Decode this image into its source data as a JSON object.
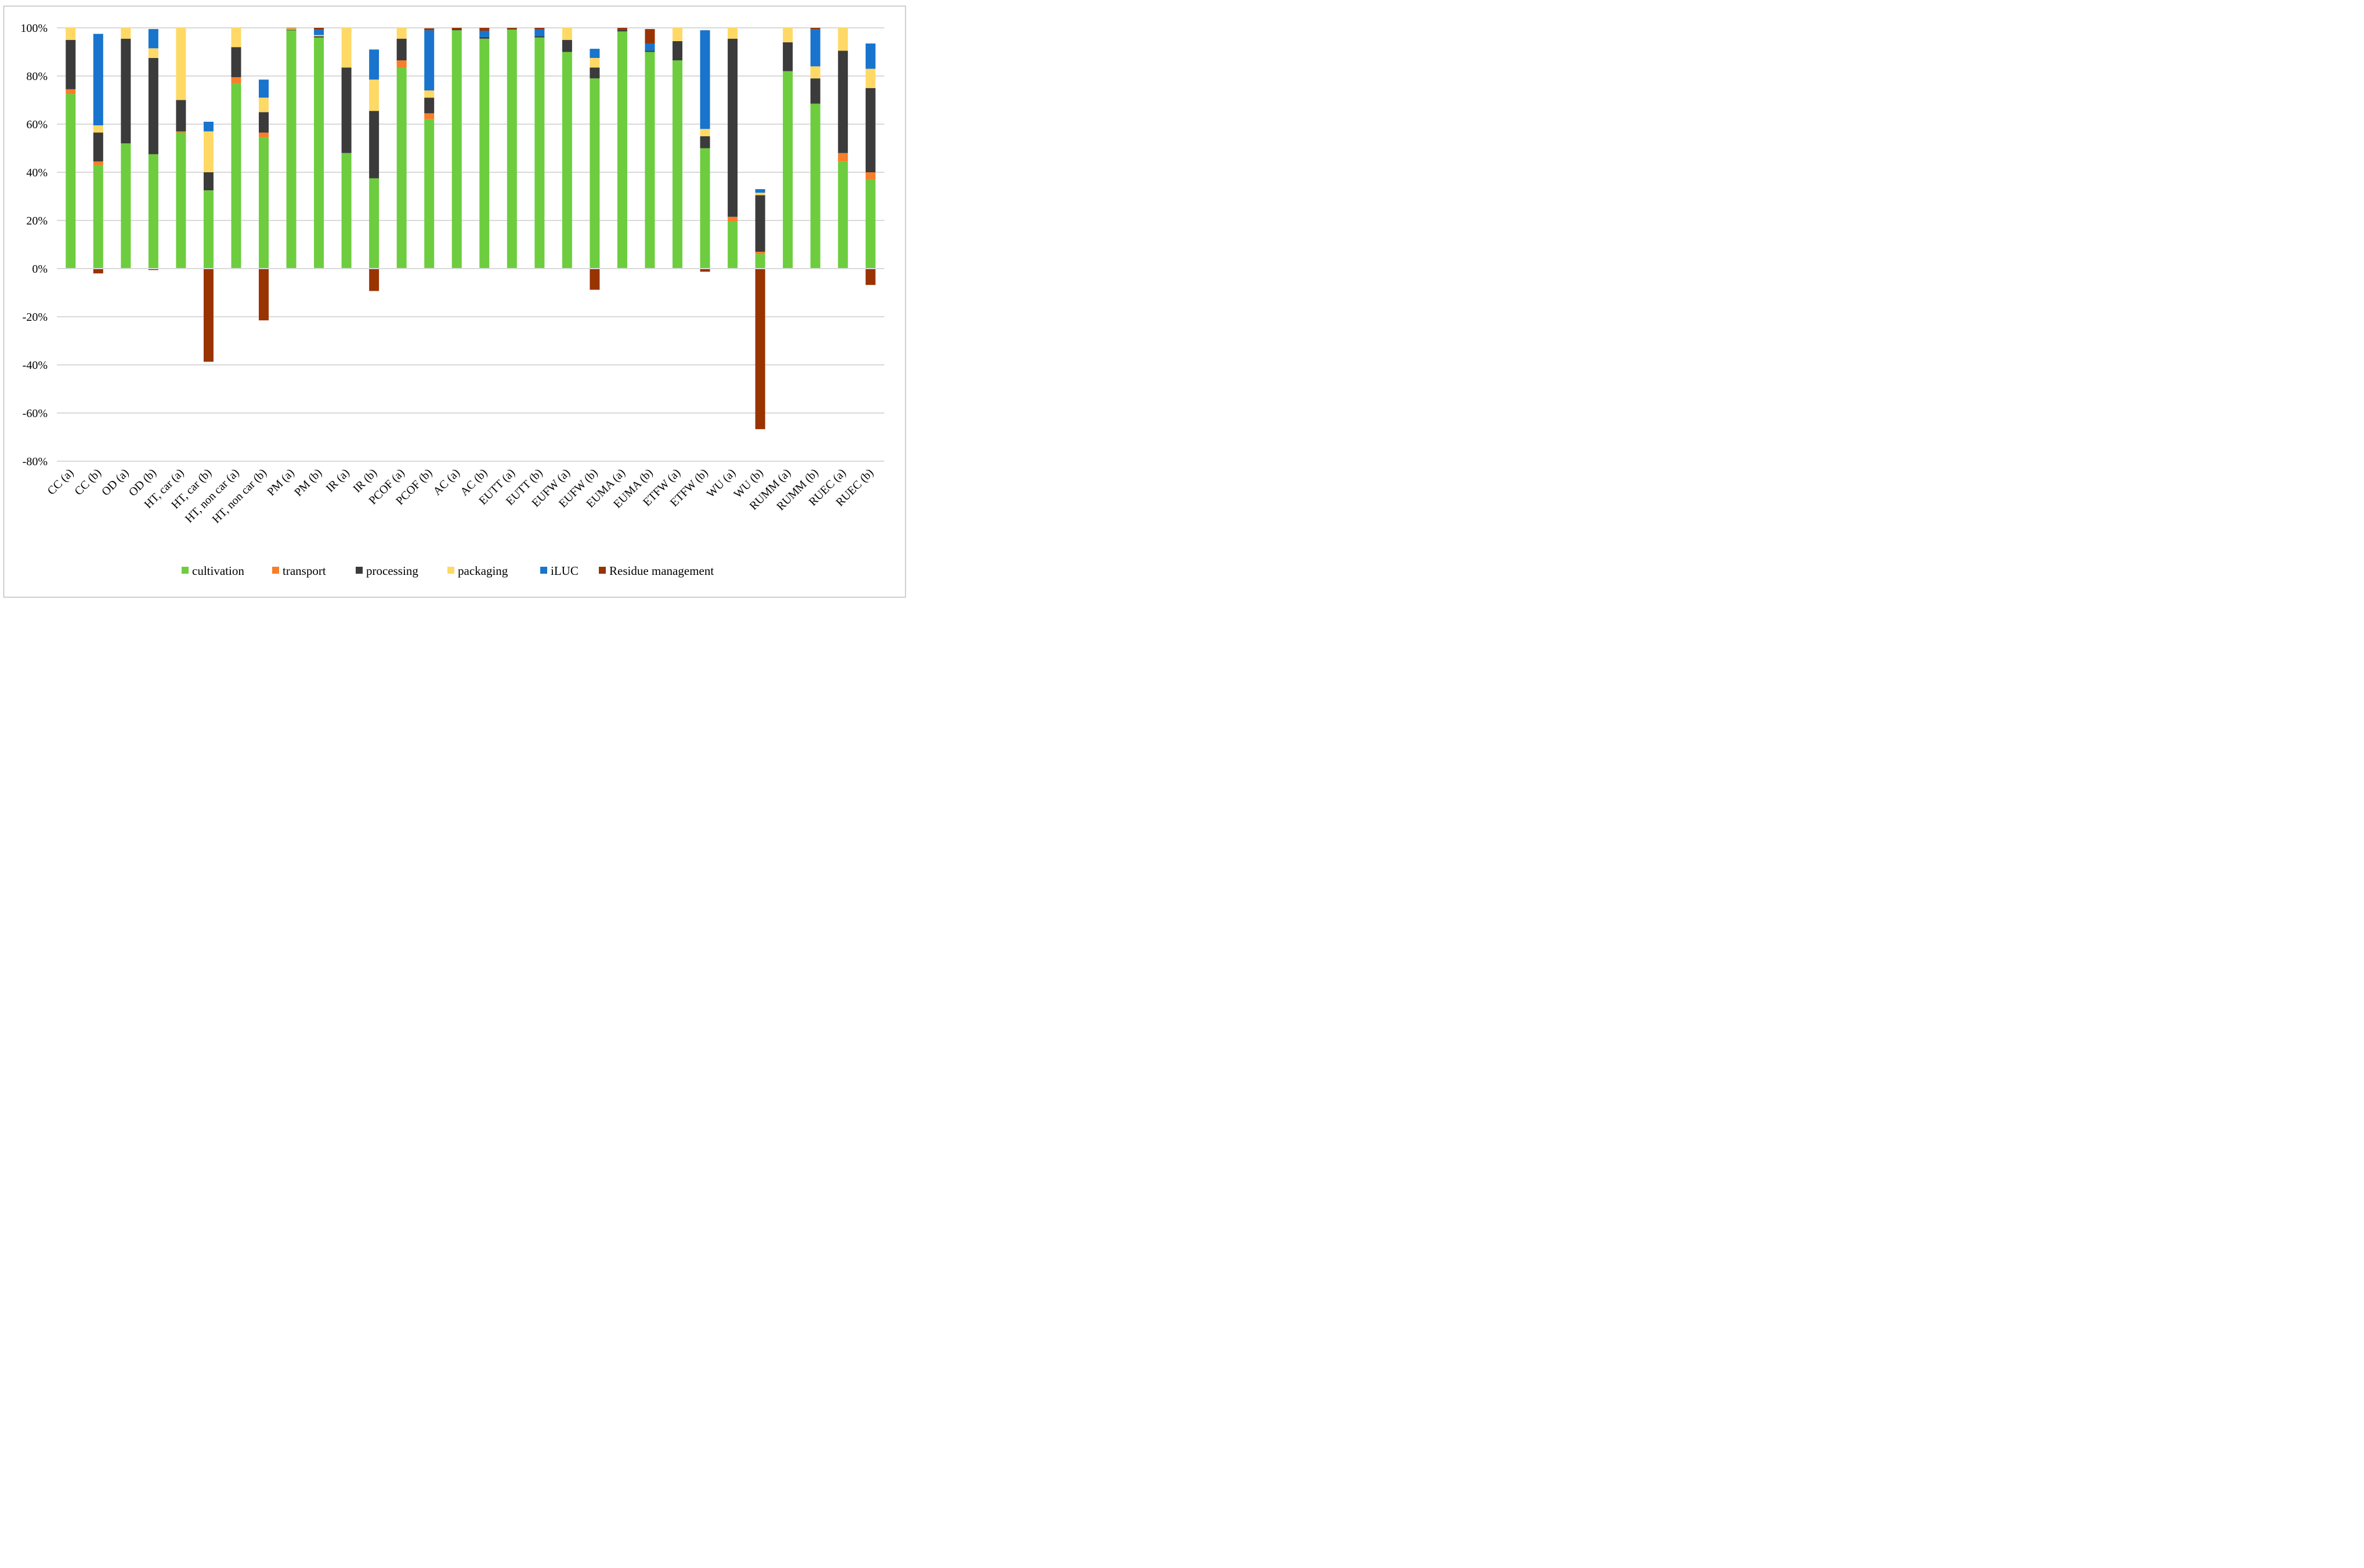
{
  "chart_data": {
    "type": "bar",
    "stacked": true,
    "title": "",
    "xlabel": "",
    "ylabel": "",
    "ylim": [
      -80,
      100
    ],
    "yticks": [
      100,
      80,
      60,
      40,
      20,
      0,
      -20,
      -40,
      -60,
      -80
    ],
    "ytick_labels": [
      "100%",
      "80%",
      "60%",
      "40%",
      "20%",
      "0%",
      "-20%",
      "-40%",
      "-60%",
      "-80%"
    ],
    "grid": true,
    "legend_position": "bottom",
    "categories": [
      "CC (a)",
      "CC (b)",
      "OD (a)",
      "OD (b)",
      "HT, car (a)",
      "HT, car (b)",
      "HT, non car (a)",
      "HT, non car (b)",
      "PM (a)",
      "PM (b)",
      "IR (a)",
      "IR (b)",
      "PCOF (a)",
      "PCOF (b)",
      "AC (a)",
      "AC (b)",
      "EUTT (a)",
      "EUTT (b)",
      "EUFW (a)",
      "EUFW (b)",
      "EUMA (a)",
      "EUMA (b)",
      "ETFW (a)",
      "ETFW (b)",
      "WU (a)",
      "WU (b)",
      "RUMM (a)",
      "RUMM (b)",
      "RUEC (a)",
      "RUEC (b)"
    ],
    "series": [
      {
        "name": "cultivation",
        "color": "#6DCD3E",
        "values": [
          72.5,
          43.0,
          52.0,
          47.5,
          56.5,
          32.5,
          77.0,
          54.5,
          99.0,
          96.0,
          48.0,
          37.5,
          83.5,
          62.0,
          99.0,
          95.5,
          99.3,
          96.0,
          90.0,
          79.0,
          98.5,
          90.0,
          86.5,
          50.0,
          19.5,
          6.0,
          82.0,
          68.5,
          44.5,
          37.0
        ]
      },
      {
        "name": "transport",
        "color": "#F77E2A",
        "values": [
          2.0,
          1.5,
          0,
          0,
          0.5,
          0,
          2.5,
          2.0,
          0,
          0,
          0,
          0,
          3.0,
          2.5,
          0,
          0,
          0,
          0,
          0,
          0,
          0,
          0,
          0,
          0,
          2.0,
          1.0,
          0,
          0,
          3.5,
          3.0
        ]
      },
      {
        "name": "processing",
        "color": "#3B3B3B",
        "values": [
          20.5,
          12.0,
          43.5,
          40.0,
          13.0,
          7.5,
          12.5,
          8.5,
          0.3,
          0.5,
          35.5,
          28.0,
          9.0,
          6.5,
          0.5,
          0.7,
          0.3,
          0.5,
          5.0,
          4.5,
          0.7,
          0.5,
          8.0,
          5.0,
          74.0,
          23.5,
          12.0,
          10.5,
          42.5,
          35.0
        ]
      },
      {
        "name": "packaging",
        "color": "#FFD966",
        "values": [
          5.0,
          3.0,
          4.5,
          4.0,
          30.0,
          17.0,
          8.0,
          6.0,
          0.5,
          0.5,
          16.5,
          13.0,
          4.5,
          3.0,
          0,
          0,
          0,
          0,
          5.0,
          4.0,
          0,
          0,
          5.5,
          3.0,
          4.5,
          1.0,
          6.0,
          5.0,
          9.5,
          8.0
        ]
      },
      {
        "name": "iLUC",
        "color": "#1874CD",
        "values": [
          0,
          38.0,
          0,
          8.0,
          0,
          4.0,
          0,
          7.5,
          0,
          2.2,
          0,
          12.5,
          0,
          25.0,
          0,
          2.6,
          0,
          2.8,
          0,
          3.8,
          0,
          3.0,
          0,
          41.0,
          0,
          1.5,
          0,
          15.5,
          0,
          10.5
        ]
      },
      {
        "name": "Residue management",
        "color": "#993300",
        "values": [
          0,
          -2.0,
          0,
          -0.6,
          0,
          -38.7,
          0,
          -21.5,
          0.2,
          0.8,
          0,
          -9.3,
          0,
          0.8,
          0.5,
          1.2,
          0.4,
          0.7,
          0,
          -8.8,
          0.8,
          6.0,
          0,
          -1.3,
          0,
          -66.7,
          0,
          0.5,
          0,
          -6.8
        ]
      }
    ]
  }
}
